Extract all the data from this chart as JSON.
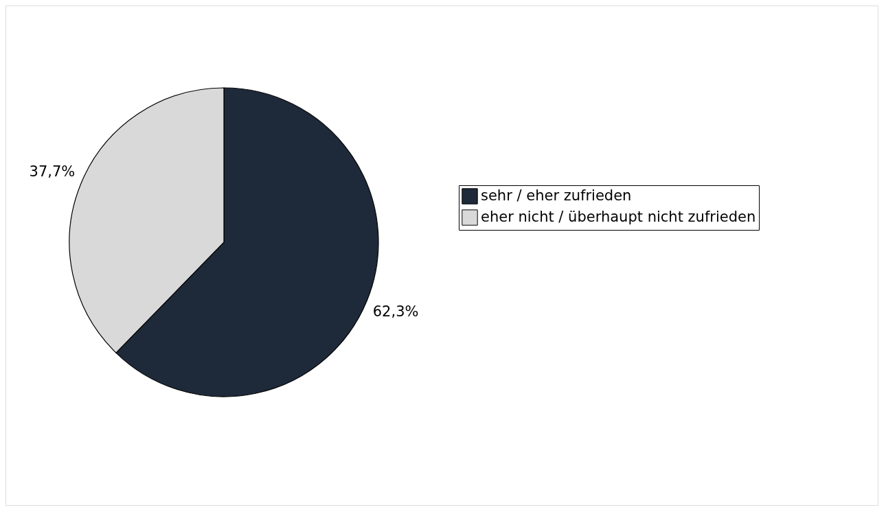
{
  "chart_data": {
    "type": "pie",
    "categories": [
      "sehr / eher  zufrieden",
      "eher nicht / überhaupt nicht zufrieden"
    ],
    "values": [
      62.3,
      37.7
    ],
    "colors": [
      "#1e2a3a",
      "#d9d9d9"
    ],
    "value_labels": [
      "62,3%",
      "37,7%"
    ],
    "legend": "right"
  }
}
